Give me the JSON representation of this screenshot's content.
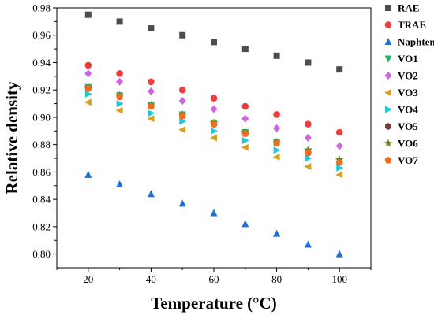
{
  "chart_data": {
    "type": "scatter",
    "title": "",
    "xlabel": "Temperature (°C)",
    "ylabel": "Relative density",
    "xlim": [
      10,
      110
    ],
    "ylim": [
      0.79,
      0.98
    ],
    "x_ticks": [
      20,
      40,
      60,
      80,
      100
    ],
    "y_ticks": [
      0.8,
      0.82,
      0.84,
      0.86,
      0.88,
      0.9,
      0.92,
      0.94,
      0.96,
      0.98
    ],
    "x_tick_labels": [
      "20",
      "40",
      "60",
      "80",
      "100"
    ],
    "y_tick_labels": [
      "0.80",
      "0.82",
      "0.84",
      "0.86",
      "0.88",
      "0.90",
      "0.92",
      "0.94",
      "0.96",
      "0.98"
    ],
    "legend_position": "right",
    "grid": false,
    "x": [
      20,
      30,
      40,
      50,
      60,
      70,
      80,
      90,
      100
    ],
    "series": [
      {
        "name": "RAE",
        "marker": "square",
        "color": "#4d4d4d",
        "values": [
          0.975,
          0.97,
          0.965,
          0.96,
          0.955,
          0.95,
          0.945,
          0.94,
          0.935
        ]
      },
      {
        "name": "TRAE",
        "marker": "circle",
        "color": "#ee3b3b",
        "values": [
          0.938,
          0.932,
          0.926,
          0.92,
          0.914,
          0.908,
          0.902,
          0.895,
          0.889
        ]
      },
      {
        "name": "Naphtenic",
        "marker": "triangle-up",
        "color": "#1f6fd8",
        "values": [
          0.858,
          0.851,
          0.844,
          0.837,
          0.83,
          0.822,
          0.815,
          0.807,
          0.8
        ]
      },
      {
        "name": "VO1",
        "marker": "triangle-down",
        "color": "#1fb35a",
        "values": [
          0.922,
          0.916,
          0.909,
          0.902,
          0.896,
          0.889,
          0.882,
          0.875,
          0.868
        ]
      },
      {
        "name": "VO2",
        "marker": "diamond",
        "color": "#cc66e0",
        "values": [
          0.932,
          0.926,
          0.919,
          0.912,
          0.906,
          0.899,
          0.892,
          0.885,
          0.879
        ]
      },
      {
        "name": "VO3",
        "marker": "triangle-left",
        "color": "#d9a020",
        "values": [
          0.911,
          0.905,
          0.899,
          0.891,
          0.885,
          0.878,
          0.871,
          0.864,
          0.858
        ]
      },
      {
        "name": "VO4",
        "marker": "triangle-right",
        "color": "#1fc8dc",
        "values": [
          0.917,
          0.91,
          0.903,
          0.897,
          0.89,
          0.883,
          0.876,
          0.87,
          0.863
        ]
      },
      {
        "name": "VO5",
        "marker": "hexagon",
        "color": "#7a3b3b",
        "values": [
          0.921,
          0.915,
          0.908,
          0.901,
          0.895,
          0.888,
          0.881,
          0.874,
          0.867
        ]
      },
      {
        "name": "VO6",
        "marker": "star",
        "color": "#7a7a1f",
        "values": [
          0.922,
          0.916,
          0.909,
          0.902,
          0.896,
          0.889,
          0.882,
          0.876,
          0.869
        ]
      },
      {
        "name": "VO7",
        "marker": "pentagon",
        "color": "#f26b1d",
        "values": [
          0.921,
          0.915,
          0.908,
          0.901,
          0.895,
          0.888,
          0.881,
          0.874,
          0.867
        ]
      }
    ]
  }
}
